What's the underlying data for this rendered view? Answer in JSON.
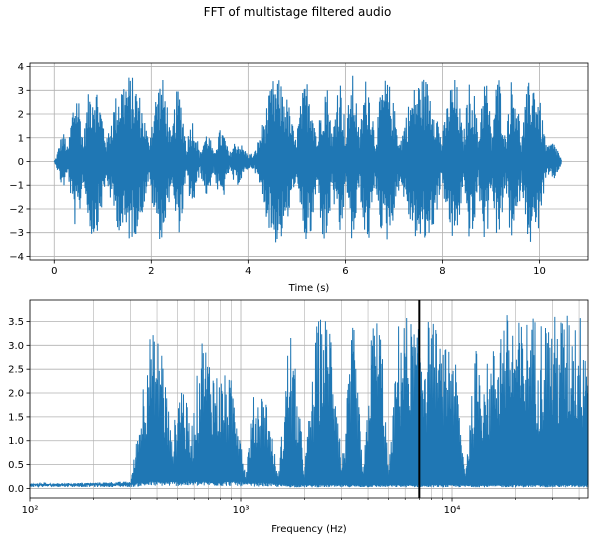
{
  "figure": {
    "suptitle": "FFT of multistage filtered audio"
  },
  "colors": {
    "series": "#1f77b4",
    "grid": "#b0b0b0",
    "marker_line": "#000000"
  },
  "chart_data": [
    {
      "type": "line",
      "title": "",
      "xlabel": "Time (s)",
      "ylabel": "",
      "xlim": [
        -0.5,
        11.0
      ],
      "ylim": [
        -4.15,
        4.15
      ],
      "xticks": [
        0,
        2,
        4,
        6,
        8,
        10
      ],
      "yticks": [
        -4,
        -3,
        -2,
        -1,
        0,
        1,
        2,
        3,
        4
      ],
      "grid": true,
      "series": [
        {
          "color": "#1f77b4",
          "x": [
            0.0,
            0.5,
            1.0,
            1.5,
            2.0,
            2.5,
            3.0,
            3.5,
            4.0,
            4.5,
            5.0,
            5.5,
            6.0,
            6.5,
            7.0,
            7.5,
            8.0,
            8.5,
            9.0,
            9.5,
            10.0,
            10.45
          ],
          "upper_envelope": [
            0.1,
            3.5,
            3.6,
            3.7,
            3.7,
            3.4,
            1.2,
            1.4,
            0.5,
            3.5,
            3.6,
            3.4,
            3.7,
            3.6,
            3.5,
            3.6,
            3.6,
            3.5,
            3.7,
            3.6,
            3.7,
            0.1
          ],
          "lower_envelope": [
            -0.1,
            -3.2,
            -3.3,
            -3.4,
            -3.4,
            -3.3,
            -1.4,
            -1.7,
            -0.5,
            -3.5,
            -3.6,
            -3.6,
            -3.5,
            -3.6,
            -3.4,
            -3.6,
            -3.5,
            -3.5,
            -3.4,
            -3.5,
            -3.6,
            -0.1
          ]
        }
      ]
    },
    {
      "type": "line",
      "title": "",
      "xlabel": "Frequency (Hz)",
      "ylabel": "",
      "xscale": "log",
      "xlim": [
        100,
        44100
      ],
      "ylim": [
        -0.2,
        3.95
      ],
      "xticks_major": [
        100,
        1000,
        10000
      ],
      "xtick_labels": [
        "10²",
        "10³",
        "10⁴"
      ],
      "yticks": [
        0.0,
        0.5,
        1.0,
        1.5,
        2.0,
        2.5,
        3.0,
        3.5
      ],
      "ytick_labels": [
        "0.0",
        "0.5",
        "1.0",
        "1.5",
        "2.0",
        "2.5",
        "3.0",
        "3.5"
      ],
      "grid": true,
      "vertical_line": 7000,
      "series": [
        {
          "color": "#1f77b4",
          "x": [
            100,
            300,
            330,
            360,
            420,
            470,
            520,
            580,
            650,
            720,
            780,
            850,
            950,
            1050,
            1150,
            1300,
            1500,
            1700,
            2000,
            2300,
            2700,
            3000,
            3400,
            3800,
            4200,
            4600,
            5000,
            5600,
            6200,
            6800,
            7500,
            8300,
            9000,
            10000,
            11500,
            13000,
            15000,
            17000,
            19000,
            21000,
            24000,
            28000,
            33000,
            38000,
            44100
          ],
          "upper_envelope": [
            0.1,
            0.15,
            1.5,
            3.3,
            3.2,
            1.0,
            2.5,
            1.2,
            3.3,
            2.8,
            2.4,
            2.4,
            2.2,
            0.3,
            2.0,
            2.1,
            0.2,
            3.6,
            0.5,
            3.6,
            3.7,
            0.5,
            3.6,
            0.3,
            3.7,
            3.6,
            0.3,
            3.6,
            3.7,
            3.3,
            3.6,
            3.5,
            2.8,
            3.4,
            0.4,
            3.0,
            2.6,
            3.7,
            3.7,
            3.5,
            3.7,
            3.6,
            3.7,
            3.7,
            3.7
          ],
          "baseline": [
            0.06,
            0.06,
            0.08,
            0.1,
            0.1,
            0.1,
            0.1,
            0.1,
            0.1,
            0.1,
            0.1,
            0.1,
            0.1,
            0.08,
            0.08,
            0.08,
            0.06,
            0.05,
            0.05,
            0.05,
            0.05,
            0.05,
            0.05,
            0.05,
            0.05,
            0.05,
            0.05,
            0.05,
            0.05,
            0.05,
            0.05,
            0.05,
            0.05,
            0.05,
            0.05,
            0.05,
            0.05,
            0.05,
            0.05,
            0.05,
            0.05,
            0.05,
            0.05,
            0.05,
            0.05
          ]
        }
      ]
    }
  ]
}
